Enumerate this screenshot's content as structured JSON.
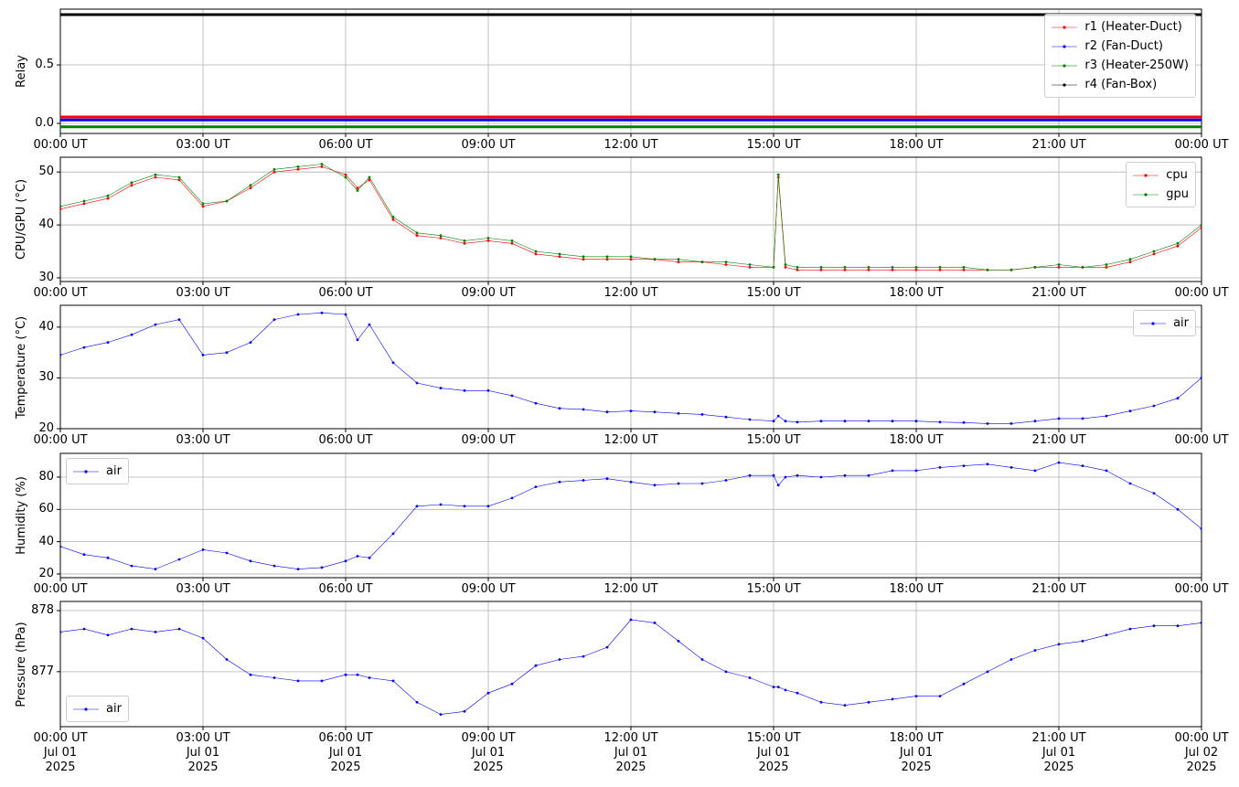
{
  "chart_data": [
    {
      "type": "line",
      "ylabel": "Relay",
      "xlim": [
        0,
        24
      ],
      "ylim": [
        -0.086,
        0.977
      ],
      "yticks": [
        {
          "value": 0,
          "label": "0.0"
        },
        0.5
      ],
      "grid": true,
      "legend": "upper right",
      "line_width": 3,
      "xticks": [
        {
          "value": 0,
          "label": "00:00 UT"
        },
        {
          "value": 3,
          "label": "03:00 UT"
        },
        {
          "value": 6,
          "label": "06:00 UT"
        },
        {
          "value": 9,
          "label": "09:00 UT"
        },
        {
          "value": 12,
          "label": "12:00 UT"
        },
        {
          "value": 15,
          "label": "15:00 UT"
        },
        {
          "value": 18,
          "label": "18:00 UT"
        },
        {
          "value": 21,
          "label": "21:00 UT"
        },
        {
          "value": 24,
          "label": "00:00 UT"
        }
      ],
      "x": [
        0,
        24
      ],
      "series": [
        {
          "name": "r1 (Heater-Duct)",
          "color": "#ff0000",
          "values": [
            0.055,
            0.055
          ]
        },
        {
          "name": "r2 (Fan-Duct)",
          "color": "#0000ff",
          "values": [
            0.03,
            0.03
          ]
        },
        {
          "name": "r3 (Heater-250W)",
          "color": "#008000",
          "values": [
            -0.03,
            -0.03
          ]
        },
        {
          "name": "r4 (Fan-Box)",
          "color": "#000000",
          "values": [
            0.93,
            0.93
          ]
        }
      ]
    },
    {
      "type": "line",
      "ylabel": "CPU/GPU (°C)",
      "xlim": [
        0,
        24
      ],
      "ylim": [
        29.3,
        52.8
      ],
      "yticks": [
        30,
        40,
        50
      ],
      "grid": true,
      "legend": "upper right",
      "line_width": 0.6,
      "xticks": [
        {
          "value": 0,
          "label": "00:00 UT"
        },
        {
          "value": 3,
          "label": "03:00 UT"
        },
        {
          "value": 6,
          "label": "06:00 UT"
        },
        {
          "value": 9,
          "label": "09:00 UT"
        },
        {
          "value": 12,
          "label": "12:00 UT"
        },
        {
          "value": 15,
          "label": "15:00 UT"
        },
        {
          "value": 18,
          "label": "18:00 UT"
        },
        {
          "value": 21,
          "label": "21:00 UT"
        },
        {
          "value": 24,
          "label": "00:00 UT"
        }
      ],
      "x": [
        0,
        0.5,
        1,
        1.5,
        2,
        2.5,
        3,
        3.5,
        4,
        4.5,
        5,
        5.5,
        6,
        6.25,
        6.5,
        7,
        7.5,
        8,
        8.5,
        9,
        9.5,
        10,
        10.5,
        11,
        11.5,
        12,
        12.5,
        13,
        13.5,
        14,
        14.5,
        15,
        15.1,
        15.25,
        15.5,
        16,
        16.5,
        17,
        17.5,
        18,
        18.5,
        19,
        19.5,
        20,
        20.5,
        21,
        21.5,
        22,
        22.5,
        23,
        23.5,
        24
      ],
      "series": [
        {
          "name": "cpu",
          "color": "#ff0000",
          "values": [
            43,
            44,
            45,
            47.5,
            49,
            48.5,
            43.5,
            44.5,
            47,
            50,
            50.5,
            51,
            49.5,
            47,
            48.5,
            41,
            38,
            37.5,
            36.5,
            37,
            36.5,
            34.5,
            34,
            33.5,
            33.5,
            33.5,
            33.5,
            33,
            33,
            32.5,
            32,
            32,
            49,
            32,
            31.5,
            31.5,
            31.5,
            31.5,
            31.5,
            31.5,
            31.5,
            31.5,
            31.5,
            31.5,
            32,
            32,
            32,
            32,
            33,
            34.5,
            36,
            39.5
          ]
        },
        {
          "name": "gpu",
          "color": "#008000",
          "values": [
            43.5,
            44.5,
            45.5,
            48,
            49.5,
            49,
            44,
            44.5,
            47.5,
            50.5,
            51,
            51.5,
            49,
            46.5,
            49,
            41.5,
            38.5,
            38,
            37,
            37.5,
            37,
            35,
            34.5,
            34,
            34,
            34,
            33.5,
            33.5,
            33,
            33,
            32.5,
            32,
            49.5,
            32.5,
            32,
            32,
            32,
            32,
            32,
            32,
            32,
            32,
            31.5,
            31.5,
            32,
            32.5,
            32,
            32.5,
            33.5,
            35,
            36.5,
            40
          ]
        }
      ]
    },
    {
      "type": "line",
      "ylabel": "Temperature (°C)",
      "xlim": [
        0,
        24
      ],
      "ylim": [
        20,
        44.3
      ],
      "yticks": [
        20,
        30,
        40
      ],
      "grid": true,
      "legend": "upper right",
      "line_width": 0.6,
      "xticks": [
        {
          "value": 0,
          "label": "00:00 UT"
        },
        {
          "value": 3,
          "label": "03:00 UT"
        },
        {
          "value": 6,
          "label": "06:00 UT"
        },
        {
          "value": 9,
          "label": "09:00 UT"
        },
        {
          "value": 12,
          "label": "12:00 UT"
        },
        {
          "value": 15,
          "label": "15:00 UT"
        },
        {
          "value": 18,
          "label": "18:00 UT"
        },
        {
          "value": 21,
          "label": "21:00 UT"
        },
        {
          "value": 24,
          "label": "00:00 UT"
        }
      ],
      "x": [
        0,
        0.5,
        1,
        1.5,
        2,
        2.5,
        3,
        3.5,
        4,
        4.5,
        5,
        5.5,
        6,
        6.25,
        6.5,
        7,
        7.5,
        8,
        8.5,
        9,
        9.5,
        10,
        10.5,
        11,
        11.5,
        12,
        12.5,
        13,
        13.5,
        14,
        14.5,
        15,
        15.1,
        15.25,
        15.5,
        16,
        16.5,
        17,
        17.5,
        18,
        18.5,
        19,
        19.5,
        20,
        20.5,
        21,
        21.5,
        22,
        22.5,
        23,
        23.5,
        24
      ],
      "series": [
        {
          "name": "air",
          "color": "#0000ff",
          "values": [
            34.5,
            36,
            37,
            38.5,
            40.5,
            41.5,
            34.5,
            35,
            37,
            41.5,
            42.5,
            42.8,
            42.5,
            37.5,
            40.5,
            33,
            29,
            28,
            27.5,
            27.5,
            26.5,
            25,
            24,
            23.8,
            23.3,
            23.5,
            23.3,
            23,
            22.8,
            22.3,
            21.8,
            21.5,
            22.5,
            21.5,
            21.3,
            21.5,
            21.5,
            21.5,
            21.5,
            21.5,
            21.3,
            21.2,
            21,
            21,
            21.5,
            22,
            22,
            22.5,
            23.5,
            24.5,
            26,
            30
          ]
        }
      ]
    },
    {
      "type": "line",
      "ylabel": "Humidity (%)",
      "xlim": [
        0,
        24
      ],
      "ylim": [
        17.7,
        94.7
      ],
      "yticks": [
        20,
        40,
        60,
        80
      ],
      "grid": true,
      "legend": "upper left",
      "line_width": 0.6,
      "xticks": [
        {
          "value": 0,
          "label": "00:00 UT"
        },
        {
          "value": 3,
          "label": "03:00 UT"
        },
        {
          "value": 6,
          "label": "06:00 UT"
        },
        {
          "value": 9,
          "label": "09:00 UT"
        },
        {
          "value": 12,
          "label": "12:00 UT"
        },
        {
          "value": 15,
          "label": "15:00 UT"
        },
        {
          "value": 18,
          "label": "18:00 UT"
        },
        {
          "value": 21,
          "label": "21:00 UT"
        },
        {
          "value": 24,
          "label": "00:00 UT"
        }
      ],
      "x": [
        0,
        0.5,
        1,
        1.5,
        2,
        2.5,
        3,
        3.5,
        4,
        4.5,
        5,
        5.5,
        6,
        6.25,
        6.5,
        7,
        7.5,
        8,
        8.5,
        9,
        9.5,
        10,
        10.5,
        11,
        11.5,
        12,
        12.5,
        13,
        13.5,
        14,
        14.5,
        15,
        15.1,
        15.25,
        15.5,
        16,
        16.5,
        17,
        17.5,
        18,
        18.5,
        19,
        19.5,
        20,
        20.5,
        21,
        21.5,
        22,
        22.5,
        23,
        23.5,
        24
      ],
      "series": [
        {
          "name": "air",
          "color": "#0000ff",
          "values": [
            37,
            32,
            30,
            25,
            23,
            29,
            35,
            33,
            28,
            25,
            23,
            24,
            28,
            31,
            30,
            45,
            62,
            63,
            62,
            62,
            67,
            74,
            77,
            78,
            79,
            77,
            75,
            76,
            76,
            78,
            81,
            81,
            75,
            80,
            81,
            80,
            81,
            81,
            84,
            84,
            86,
            87,
            88,
            86,
            84,
            89,
            87,
            84,
            76,
            70,
            60,
            48
          ]
        }
      ]
    },
    {
      "type": "line",
      "ylabel": "Pressure (hPa)",
      "xlim": [
        0,
        24
      ],
      "ylim": [
        876.1,
        878.15
      ],
      "yticks": [
        877,
        878
      ],
      "grid": true,
      "legend": "lower left",
      "line_width": 0.6,
      "xticks": [
        {
          "value": 0,
          "label": "00:00 UT\nJul 01\n2025"
        },
        {
          "value": 3,
          "label": "03:00 UT\nJul 01\n2025"
        },
        {
          "value": 6,
          "label": "06:00 UT\nJul 01\n2025"
        },
        {
          "value": 9,
          "label": "09:00 UT\nJul 01\n2025"
        },
        {
          "value": 12,
          "label": "12:00 UT\nJul 01\n2025"
        },
        {
          "value": 15,
          "label": "15:00 UT\nJul 01\n2025"
        },
        {
          "value": 18,
          "label": "18:00 UT\nJul 01\n2025"
        },
        {
          "value": 21,
          "label": "21:00 UT\nJul 01\n2025"
        },
        {
          "value": 24,
          "label": "00:00 UT\nJul 02\n2025"
        }
      ],
      "x": [
        0,
        0.5,
        1,
        1.5,
        2,
        2.5,
        3,
        3.5,
        4,
        4.5,
        5,
        5.5,
        6,
        6.25,
        6.5,
        7,
        7.5,
        8,
        8.5,
        9,
        9.5,
        10,
        10.5,
        11,
        11.5,
        12,
        12.5,
        13,
        13.5,
        14,
        14.5,
        15,
        15.1,
        15.25,
        15.5,
        16,
        16.5,
        17,
        17.5,
        18,
        18.5,
        19,
        19.5,
        20,
        20.5,
        21,
        21.5,
        22,
        22.5,
        23,
        23.5,
        24
      ],
      "series": [
        {
          "name": "air",
          "color": "#0000ff",
          "values": [
            877.65,
            877.7,
            877.6,
            877.7,
            877.65,
            877.7,
            877.55,
            877.2,
            876.95,
            876.9,
            876.85,
            876.85,
            876.95,
            876.95,
            876.9,
            876.85,
            876.5,
            876.3,
            876.35,
            876.65,
            876.8,
            877.1,
            877.2,
            877.25,
            877.4,
            877.85,
            877.8,
            877.5,
            877.2,
            877.0,
            876.9,
            876.75,
            876.75,
            876.7,
            876.65,
            876.5,
            876.45,
            876.5,
            876.55,
            876.6,
            876.6,
            876.8,
            877.0,
            877.2,
            877.35,
            877.45,
            877.5,
            877.6,
            877.7,
            877.75,
            877.75,
            877.8
          ]
        }
      ]
    }
  ]
}
